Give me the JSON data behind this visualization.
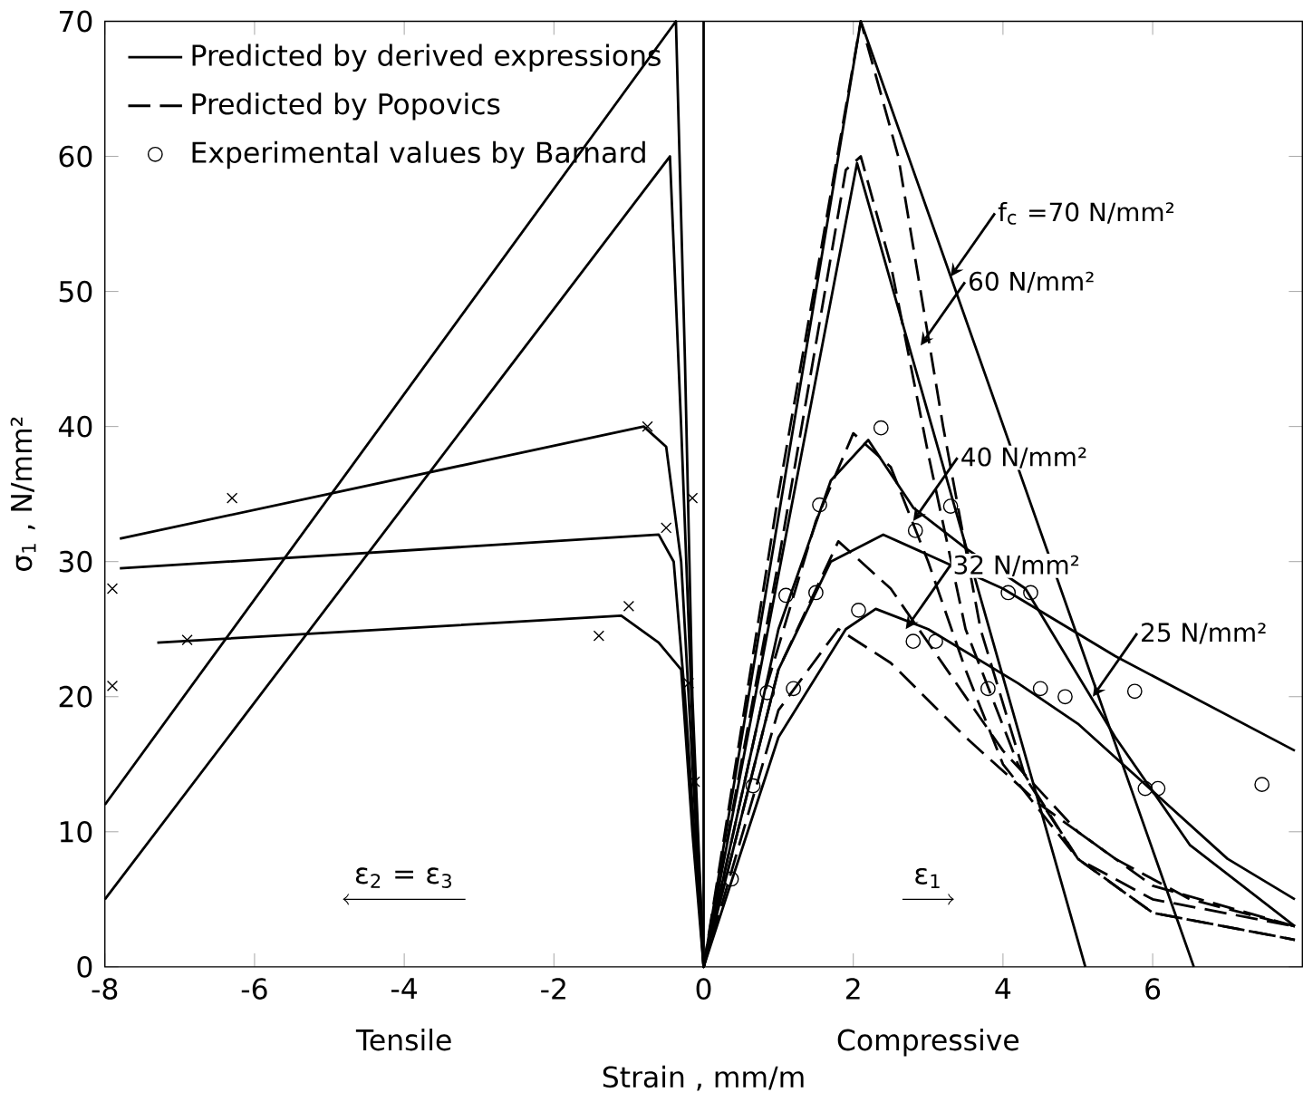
{
  "chart_data": {
    "type": "line",
    "xlabel": "Strain , mm/m",
    "ylabel": "σ$_{1}$ , N/mm²",
    "xlim": [
      -8,
      8
    ],
    "ylim": [
      0,
      70
    ],
    "xticks": [
      -8,
      -6,
      -4,
      -2,
      0,
      2,
      4,
      6
    ],
    "yticks": [
      0,
      10,
      20,
      30,
      40,
      50,
      60,
      70
    ],
    "legend": "top left",
    "grid": false,
    "ref_lines": [
      {
        "axis": "x",
        "value": 0,
        "color": "#000000",
        "line_style": "solid"
      }
    ],
    "annotations": [
      "Tensile",
      "Compressive",
      "ε$_{2}$ = ε$_{3}$",
      "ε$_{1}$",
      {
        "text": "f$_{c}$ =70 N/mm²",
        "x": 3.3,
        "y": 51.1
      },
      {
        "text": "60 N/mm²",
        "x": 2.9,
        "y": 46
      },
      {
        "text": "40 N/mm²",
        "x": 2.8,
        "y": 33
      },
      {
        "text": "32 N/mm²",
        "x": 2.7,
        "y": 25
      },
      {
        "text": "25 N/mm²",
        "x": 5.2,
        "y": 20
      }
    ],
    "series": [
      {
        "name": "Predicted by derived expressions",
        "line_style": "solid",
        "marker": "none",
        "color": "#000000",
        "x": [
          -8,
          -0.37,
          -0.25,
          -0.15,
          0,
          2.1,
          6.55
        ],
        "values": [
          12,
          70,
          45,
          20,
          0,
          70,
          0
        ]
      },
      {
        "type": "line",
        "line_style": "solid",
        "marker": "none",
        "color": "#000000",
        "x": [
          -8,
          -0.45,
          -0.3,
          -0.15,
          0,
          2.05,
          5.1
        ],
        "values": [
          5,
          60,
          40,
          18,
          0,
          59.5,
          0
        ]
      },
      {
        "type": "line",
        "line_style": "solid",
        "marker": "none",
        "color": "#000000",
        "x": [
          -7.8,
          -0.8,
          -0.5,
          -0.3,
          -0.15,
          0,
          1,
          1.7,
          2.2,
          2.8,
          3.5,
          4.3,
          5.5,
          6.5,
          7.9
        ],
        "values": [
          31.7,
          40,
          38.5,
          30,
          15,
          0,
          25,
          36,
          39,
          34,
          31,
          28,
          17,
          9,
          3
        ]
      },
      {
        "type": "line",
        "line_style": "solid",
        "marker": "none",
        "color": "#000000",
        "x": [
          -7.8,
          -0.6,
          -0.4,
          -0.25,
          0,
          1,
          1.7,
          2.4,
          3,
          4,
          5.5,
          7.9
        ],
        "values": [
          29.5,
          32,
          30,
          20,
          0,
          22,
          30,
          32,
          30.5,
          28,
          23,
          16
        ]
      },
      {
        "type": "line",
        "line_style": "solid",
        "marker": "none",
        "color": "#000000",
        "x": [
          -7.3,
          -1.1,
          -0.6,
          -0.3,
          -0.15,
          0,
          1,
          1.9,
          2.3,
          3,
          4.2,
          5,
          6,
          7,
          7.9
        ],
        "values": [
          24,
          26,
          24,
          22,
          10,
          0,
          17,
          25,
          26.5,
          25,
          21,
          18,
          13,
          8,
          5
        ]
      },
      {
        "name": "Predicted by Popovics",
        "line_style": "dashed",
        "marker": "none",
        "color": "#000000",
        "x": [
          0,
          1,
          2.1,
          2.6,
          3.2,
          3.7,
          4.3,
          5,
          6,
          7.9
        ],
        "values": [
          0,
          35,
          70,
          60,
          40,
          25,
          14,
          8,
          4,
          2
        ]
      },
      {
        "type": "line",
        "line_style": "dashed",
        "marker": "none",
        "color": "#000000",
        "x": [
          0,
          1,
          1.9,
          2.1,
          2.5,
          3,
          3.5,
          4.2,
          5,
          6,
          7.9
        ],
        "values": [
          0,
          30,
          59,
          60,
          52,
          38,
          25,
          15,
          8,
          5,
          3
        ]
      },
      {
        "type": "line",
        "line_style": "dashed",
        "marker": "none",
        "color": "#000000",
        "x": [
          0,
          0.8,
          1.5,
          2,
          2.5,
          3,
          3.5,
          4,
          5,
          6,
          7.9
        ],
        "values": [
          0,
          20,
          33,
          39.5,
          37,
          30,
          22,
          15,
          8,
          4,
          2
        ]
      },
      {
        "type": "line",
        "line_style": "dashed",
        "marker": "none",
        "color": "#000000",
        "x": [
          0,
          1,
          1.8,
          2.5,
          3,
          4,
          5,
          6,
          7.9
        ],
        "values": [
          0,
          22,
          31.5,
          28,
          24,
          16,
          10,
          6,
          3
        ]
      },
      {
        "type": "line",
        "line_style": "dashed",
        "marker": "none",
        "color": "#000000",
        "x": [
          0,
          1,
          1.8,
          2.5,
          3.5,
          4.5,
          5.5,
          6.5,
          7.9
        ],
        "values": [
          0,
          19,
          25,
          22.5,
          17,
          12,
          8,
          5,
          3
        ]
      },
      {
        "name": "Experimental values by Barnard",
        "type": "scatter",
        "marker": "circle",
        "color": "#000000",
        "x": [
          0.37,
          0.66,
          0.85,
          1.2,
          1.1,
          1.5,
          1.55,
          2.07,
          2.37,
          2.83,
          2.8,
          3.1,
          3.3,
          3.8,
          4.07,
          4.37,
          4.5,
          4.83,
          5.76,
          5.9,
          6.07,
          7.46
        ],
        "values": [
          6.5,
          13.4,
          20.3,
          20.6,
          27.5,
          27.7,
          34.2,
          26.4,
          39.9,
          32.3,
          24.1,
          24.1,
          34.1,
          20.6,
          27.7,
          27.7,
          20.6,
          20,
          20.4,
          13.2,
          13.2,
          13.5
        ]
      },
      {
        "type": "scatter",
        "marker": "cross",
        "color": "#000000",
        "x": [
          -7.9,
          -7.9,
          -6.9,
          -6.3,
          -1.4,
          -1.0,
          -0.75,
          -0.5,
          -0.15,
          -0.2,
          -0.12
        ],
        "values": [
          28,
          20.8,
          24.2,
          34.7,
          24.5,
          26.7,
          40,
          32.5,
          34.7,
          21,
          13.7
        ]
      }
    ]
  }
}
